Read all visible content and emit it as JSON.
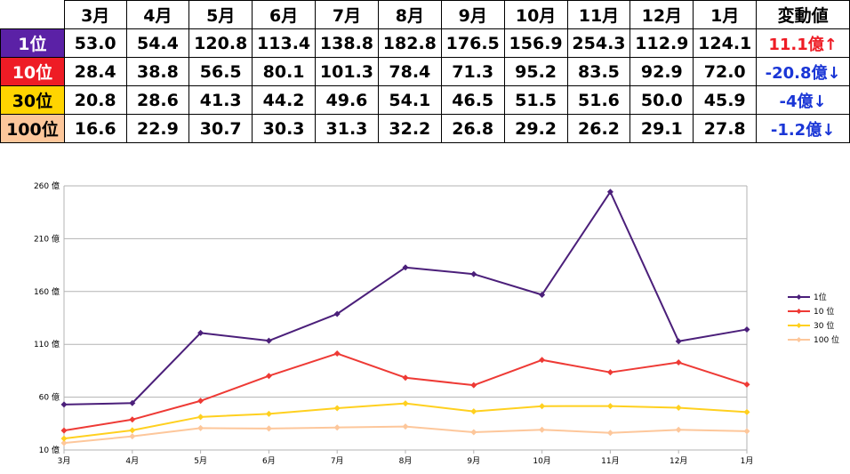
{
  "table": {
    "months": [
      "3月",
      "4月",
      "5月",
      "6月",
      "7月",
      "8月",
      "9月",
      "10月",
      "11月",
      "12月",
      "1月"
    ],
    "change_header": "変動値",
    "rows": [
      {
        "rank": "1位",
        "bg": "#5b21a6",
        "fg": "#ffffff",
        "values": [
          "53.0",
          "54.4",
          "120.8",
          "113.4",
          "138.8",
          "182.8",
          "176.5",
          "156.9",
          "254.3",
          "112.9",
          "124.1"
        ],
        "change": "11.1億↑",
        "change_color": "#ee1c25"
      },
      {
        "rank": "10位",
        "bg": "#ee1c25",
        "fg": "#ffffff",
        "values": [
          "28.4",
          "38.8",
          "56.5",
          "80.1",
          "101.3",
          "78.4",
          "71.3",
          "95.2",
          "83.5",
          "92.9",
          "72.0"
        ],
        "change": "-20.8億↓",
        "change_color": "#1a36d6"
      },
      {
        "rank": "30位",
        "bg": "#ffd400",
        "fg": "#000000",
        "values": [
          "20.8",
          "28.6",
          "41.3",
          "44.2",
          "49.6",
          "54.1",
          "46.5",
          "51.5",
          "51.6",
          "50.0",
          "45.9"
        ],
        "change": "-4億↓",
        "change_color": "#1a36d6"
      },
      {
        "rank": "100位",
        "bg": "#fdc79b",
        "fg": "#000000",
        "values": [
          "16.6",
          "22.9",
          "30.7",
          "30.3",
          "31.3",
          "32.2",
          "26.8",
          "29.2",
          "26.2",
          "29.1",
          "27.8"
        ],
        "change": "-1.2億↓",
        "change_color": "#1a36d6"
      }
    ]
  },
  "chart_data": {
    "type": "line",
    "categories": [
      "3月",
      "4月",
      "5月",
      "6月",
      "7月",
      "8月",
      "9月",
      "10月",
      "11月",
      "12月",
      "1月"
    ],
    "ylim": [
      10,
      260
    ],
    "yticks": [
      10,
      60,
      110,
      160,
      210,
      260
    ],
    "ytick_labels": [
      "10 億",
      "60 億",
      "110 億",
      "160 億",
      "210 億",
      "260 億"
    ],
    "grid": true,
    "legend_position": "right",
    "series": [
      {
        "name": "1位",
        "color": "#4b1f7a",
        "values": [
          53.0,
          54.4,
          120.8,
          113.4,
          138.8,
          182.8,
          176.5,
          156.9,
          254.3,
          112.9,
          124.1
        ]
      },
      {
        "name": "10 位",
        "color": "#ee3a35",
        "values": [
          28.4,
          38.8,
          56.5,
          80.1,
          101.3,
          78.4,
          71.3,
          95.2,
          83.5,
          92.9,
          72.0
        ]
      },
      {
        "name": "30 位",
        "color": "#ffd01f",
        "values": [
          20.8,
          28.6,
          41.3,
          44.2,
          49.6,
          54.1,
          46.5,
          51.5,
          51.6,
          50.0,
          45.9
        ]
      },
      {
        "name": "100 位",
        "color": "#fdc79b",
        "values": [
          16.6,
          22.9,
          30.7,
          30.3,
          31.3,
          32.2,
          26.8,
          29.2,
          26.2,
          29.1,
          27.8
        ]
      }
    ]
  }
}
